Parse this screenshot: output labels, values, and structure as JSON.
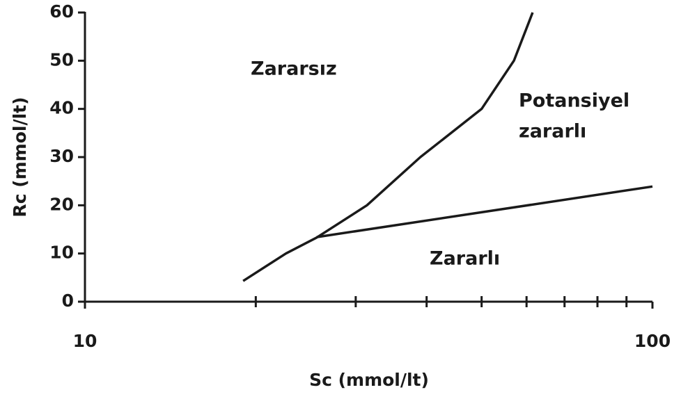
{
  "chart_data": {
    "type": "line",
    "x_label": "Sc (mmol/lt)",
    "y_label": "Rc (mmol/lt)",
    "xscale": "log",
    "xlim": [
      10,
      100
    ],
    "xticks": [
      10,
      100
    ],
    "xminorticks": [
      20,
      30,
      40,
      50,
      60,
      70,
      80,
      90
    ],
    "ylim": [
      0,
      60
    ],
    "yticks": [
      0,
      10,
      20,
      30,
      40,
      50,
      60
    ],
    "grid": false,
    "series": [
      {
        "color": "#1a1a1a",
        "x": [
          19,
          22.6,
          25.6,
          31.4,
          39,
          50,
          57,
          61.5
        ],
        "values": [
          4.3,
          10,
          13.3,
          20,
          30,
          40,
          50,
          60
        ]
      },
      {
        "color": "#1a1a1a",
        "x": [
          25.6,
          100
        ],
        "values": [
          13.4,
          23.9
        ]
      }
    ],
    "annotations": [
      "Zararsız",
      "Potansiyel",
      "zararlı",
      "Zararlı"
    ]
  }
}
